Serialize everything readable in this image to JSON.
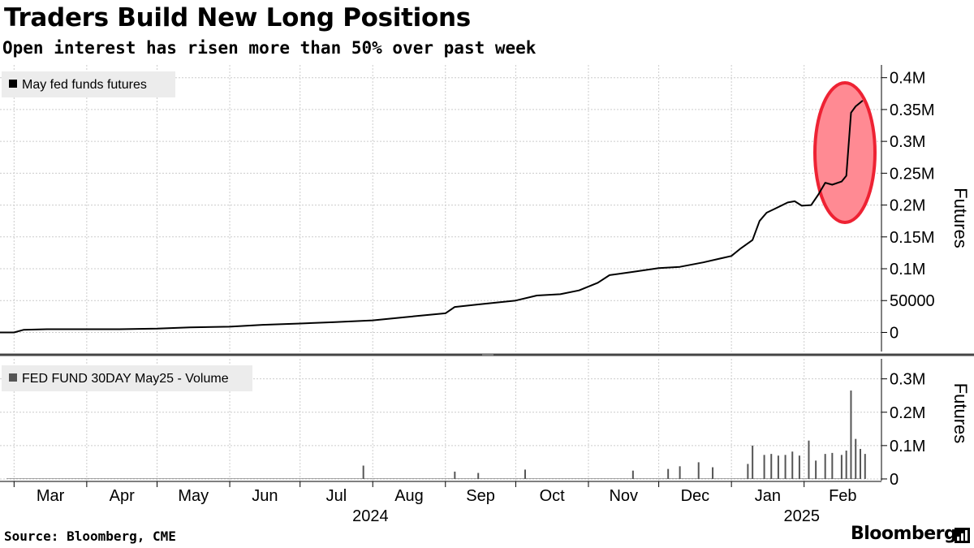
{
  "header": {
    "title": "Traders Build New Long Positions",
    "subtitle": "Open interest has risen more than 50% over past week"
  },
  "footer": {
    "source": "Source: Bloomberg, CME",
    "brand": "Bloomberg"
  },
  "brand_icon": "bloomberg-terminal-icon",
  "colors": {
    "line": "#000000",
    "bars": "#555555",
    "grid": "#cccccc",
    "legend_bg": "#ececec",
    "highlight_fill": "#ff8a93",
    "highlight_stroke": "#ee2233"
  },
  "chart_data": [
    {
      "type": "line",
      "legend": "May fed funds futures",
      "ylabel": "Futures",
      "ylim": [
        -30000,
        420000
      ],
      "y_ticks": [
        0,
        50000,
        100000,
        150000,
        200000,
        250000,
        300000,
        350000,
        400000
      ],
      "y_tick_labels": [
        "0",
        "50000",
        "0.1M",
        "0.15M",
        "0.2M",
        "0.25M",
        "0.3M",
        "0.35M",
        "0.4M"
      ],
      "grid": true,
      "legend_position": "top-left",
      "annotation": "highlight ellipse around the late-February surge",
      "points": [
        [
          "2024-02-15",
          0
        ],
        [
          "2024-03-01",
          0
        ],
        [
          "2024-03-05",
          4000
        ],
        [
          "2024-03-15",
          5000
        ],
        [
          "2024-04-15",
          5000
        ],
        [
          "2024-05-01",
          6000
        ],
        [
          "2024-05-15",
          8000
        ],
        [
          "2024-06-01",
          9000
        ],
        [
          "2024-06-15",
          12000
        ],
        [
          "2024-07-01",
          14000
        ],
        [
          "2024-07-15",
          16000
        ],
        [
          "2024-08-01",
          19000
        ],
        [
          "2024-08-15",
          24000
        ],
        [
          "2024-09-01",
          30000
        ],
        [
          "2024-09-05",
          40000
        ],
        [
          "2024-09-15",
          44000
        ],
        [
          "2024-10-01",
          50000
        ],
        [
          "2024-10-10",
          58000
        ],
        [
          "2024-10-20",
          60000
        ],
        [
          "2024-10-28",
          66000
        ],
        [
          "2024-11-05",
          78000
        ],
        [
          "2024-11-10",
          90000
        ],
        [
          "2024-11-20",
          95000
        ],
        [
          "2024-12-01",
          101000
        ],
        [
          "2024-12-10",
          103000
        ],
        [
          "2024-12-20",
          110000
        ],
        [
          "2025-01-01",
          120000
        ],
        [
          "2025-01-05",
          132000
        ],
        [
          "2025-01-10",
          145000
        ],
        [
          "2025-01-13",
          175000
        ],
        [
          "2025-01-16",
          188000
        ],
        [
          "2025-01-20",
          195000
        ],
        [
          "2025-01-25",
          204000
        ],
        [
          "2025-01-28",
          206000
        ],
        [
          "2025-01-31",
          199000
        ],
        [
          "2025-02-04",
          200000
        ],
        [
          "2025-02-07",
          216000
        ],
        [
          "2025-02-10",
          235000
        ],
        [
          "2025-02-13",
          232000
        ],
        [
          "2025-02-17",
          237000
        ],
        [
          "2025-02-19",
          246000
        ],
        [
          "2025-02-21",
          345000
        ],
        [
          "2025-02-23",
          355000
        ],
        [
          "2025-02-26",
          364000
        ]
      ]
    },
    {
      "type": "bar",
      "legend": "FED FUND 30DAY May25 - Volume",
      "ylabel": "Futures",
      "ylim": [
        -5000,
        360000
      ],
      "y_ticks": [
        0,
        100000,
        200000,
        300000
      ],
      "y_tick_labels": [
        "0",
        "0.1M",
        "0.2M",
        "0.3M"
      ],
      "grid": true,
      "legend_position": "top-left",
      "bars": [
        [
          "2024-07-28",
          40000
        ],
        [
          "2024-09-05",
          22000
        ],
        [
          "2024-09-15",
          18000
        ],
        [
          "2024-10-05",
          28000
        ],
        [
          "2024-11-20",
          25000
        ],
        [
          "2024-12-05",
          30000
        ],
        [
          "2024-12-10",
          38000
        ],
        [
          "2024-12-18",
          50000
        ],
        [
          "2024-12-24",
          35000
        ],
        [
          "2025-01-08",
          45000
        ],
        [
          "2025-01-10",
          100000
        ],
        [
          "2025-01-15",
          72000
        ],
        [
          "2025-01-18",
          75000
        ],
        [
          "2025-01-21",
          70000
        ],
        [
          "2025-01-24",
          72000
        ],
        [
          "2025-01-27",
          82000
        ],
        [
          "2025-01-30",
          70000
        ],
        [
          "2025-02-03",
          115000
        ],
        [
          "2025-02-06",
          55000
        ],
        [
          "2025-02-10",
          75000
        ],
        [
          "2025-02-13",
          78000
        ],
        [
          "2025-02-17",
          72000
        ],
        [
          "2025-02-19",
          85000
        ],
        [
          "2025-02-21",
          265000
        ],
        [
          "2025-02-23",
          120000
        ],
        [
          "2025-02-25",
          90000
        ],
        [
          "2025-02-27",
          75000
        ]
      ]
    }
  ],
  "x_axis": {
    "months": [
      {
        "label": "Mar",
        "date": "2024-03-01"
      },
      {
        "label": "Apr",
        "date": "2024-04-01"
      },
      {
        "label": "May",
        "date": "2024-05-01"
      },
      {
        "label": "Jun",
        "date": "2024-06-01"
      },
      {
        "label": "Jul",
        "date": "2024-07-01"
      },
      {
        "label": "Aug",
        "date": "2024-08-01"
      },
      {
        "label": "Sep",
        "date": "2024-09-01"
      },
      {
        "label": "Oct",
        "date": "2024-10-01"
      },
      {
        "label": "Nov",
        "date": "2024-11-01"
      },
      {
        "label": "Dec",
        "date": "2024-12-01"
      },
      {
        "label": "Jan",
        "date": "2025-01-01"
      },
      {
        "label": "Feb",
        "date": "2025-02-01"
      }
    ],
    "years": [
      {
        "label": "2024",
        "date": "2024-07-31"
      },
      {
        "label": "2025",
        "date": "2025-01-31"
      }
    ]
  }
}
